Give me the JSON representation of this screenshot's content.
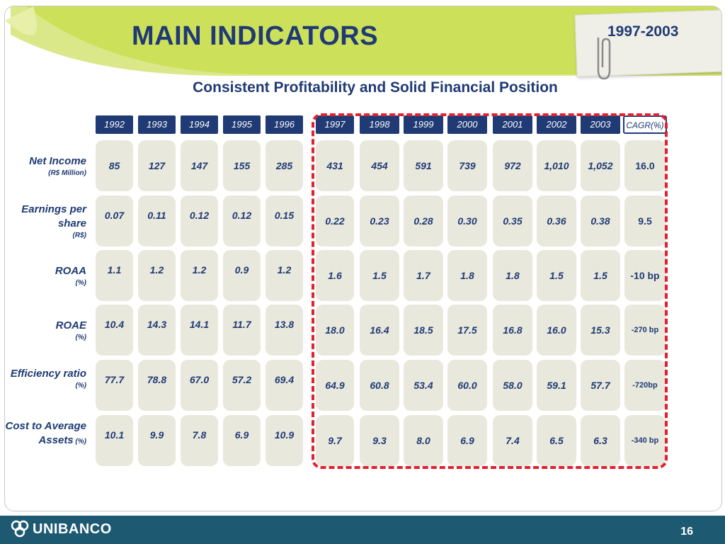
{
  "header": {
    "title": "MAIN INDICATORS",
    "period": "1997-2003"
  },
  "subtitle": "Consistent Profitability and Solid Financial Position",
  "table": {
    "years": [
      "1992",
      "1993",
      "1994",
      "1995",
      "1996",
      "1997",
      "1998",
      "1999",
      "2000",
      "2001",
      "2002",
      "2003"
    ],
    "cagr_header": {
      "label": "CAGR",
      "unit": "(%)"
    },
    "rows": [
      {
        "label": "Net Income",
        "unit": "(R$ Million)",
        "values": [
          "85",
          "127",
          "147",
          "155",
          "285",
          "431",
          "454",
          "591",
          "739",
          "972",
          "1,010",
          "1,052"
        ],
        "cagr": "16.0"
      },
      {
        "label": "Earnings per share",
        "unit": "(R$)",
        "values": [
          "0.07",
          "0.11",
          "0.12",
          "0.12",
          "0.15",
          "0.22",
          "0.23",
          "0.28",
          "0.30",
          "0.35",
          "0.36",
          "0.38"
        ],
        "cagr": "9.5"
      },
      {
        "label": "ROAA",
        "unit": "(%)",
        "values": [
          "1.1",
          "1.2",
          "1.2",
          "0.9",
          "1.2",
          "1.6",
          "1.5",
          "1.7",
          "1.8",
          "1.8",
          "1.5",
          "1.5"
        ],
        "cagr": "-10 bp"
      },
      {
        "label": "ROAE",
        "unit": "(%)",
        "values": [
          "10.4",
          "14.3",
          "14.1",
          "11.7",
          "13.8",
          "18.0",
          "16.4",
          "18.5",
          "17.5",
          "16.8",
          "16.0",
          "15.3"
        ],
        "cagr": "-270 bp"
      },
      {
        "label": "Efficiency ratio",
        "unit": "(%)",
        "values": [
          "77.7",
          "78.8",
          "67.0",
          "57.2",
          "69.4",
          "64.9",
          "60.8",
          "53.4",
          "60.0",
          "58.0",
          "59.1",
          "57.7"
        ],
        "cagr": "-720bp"
      },
      {
        "label": "Cost to Average Assets",
        "unit": "(%)",
        "values": [
          "10.1",
          "9.9",
          "7.8",
          "6.9",
          "10.9",
          "9.7",
          "9.3",
          "8.0",
          "6.9",
          "7.4",
          "6.5",
          "6.3"
        ],
        "cagr": "-340 bp"
      }
    ]
  },
  "footer": {
    "brand": "UNIBANCO",
    "logo_icon": "unibanco-logo-icon",
    "page_number": "16"
  },
  "colors": {
    "navy": "#1f3a74",
    "cell_bg": "#e9e8dc",
    "highlight_red": "#e0212e",
    "leaf_green": "#c9de55",
    "footer_teal": "#1e5972"
  }
}
